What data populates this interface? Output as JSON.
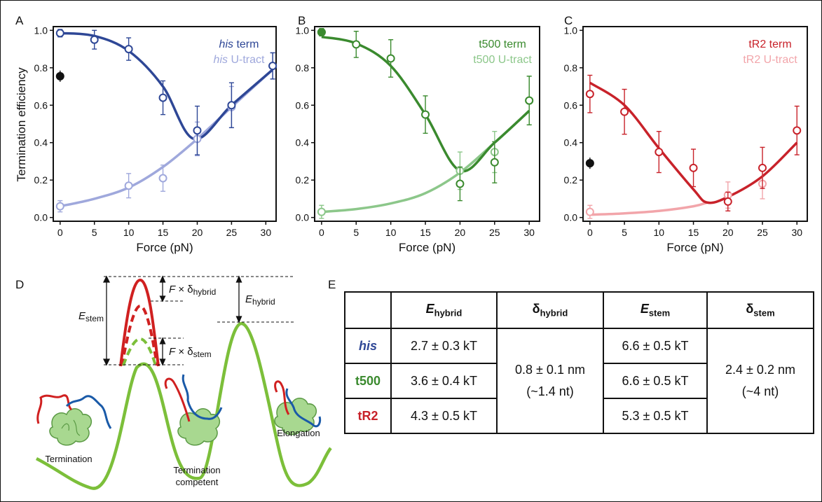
{
  "panel_labels": {
    "a": "A",
    "b": "B",
    "c": "C",
    "d": "D",
    "e": "E"
  },
  "chart_data": [
    {
      "type": "scatter",
      "panel": "A",
      "xlabel": "Force (pN)",
      "ylabel": "Termination efficiency",
      "xlim": [
        -1,
        31.5
      ],
      "ylim": [
        -0.02,
        1.02
      ],
      "xticks": [
        0,
        5,
        10,
        15,
        20,
        25,
        30
      ],
      "yticks": [
        0.0,
        0.2,
        0.4,
        0.6,
        0.8,
        1.0
      ],
      "ytick_labels": [
        "0.0",
        "0.2",
        "0.4",
        "0.6",
        "0.8",
        "1.0"
      ],
      "legend": {
        "placement": "top-right"
      },
      "series": [
        {
          "name": "his term",
          "legend_italic": "his",
          "legend_rest": " term",
          "color": "#2e4796",
          "x": [
            0,
            5,
            10,
            15,
            20,
            25,
            31
          ],
          "y": [
            0.985,
            0.95,
            0.9,
            0.64,
            0.465,
            0.6,
            0.81
          ],
          "err": [
            0.02,
            0.05,
            0.06,
            0.09,
            0.13,
            0.12,
            0.07
          ],
          "fit_x": [
            0,
            5,
            10,
            15,
            19.5,
            25,
            31
          ],
          "fit_y": [
            0.985,
            0.97,
            0.89,
            0.7,
            0.42,
            0.6,
            0.79
          ]
        },
        {
          "name": "his U-tract",
          "legend_italic": "his",
          "legend_rest": " U-tract",
          "color": "#9fa8dc",
          "x": [
            0,
            10,
            15,
            20,
            25,
            31
          ],
          "y": [
            0.06,
            0.17,
            0.21,
            0.42,
            0.59,
            0.81
          ],
          "err": [
            0.03,
            0.065,
            0.07,
            0.09,
            0.11,
            0.07
          ],
          "fit_x": [
            0,
            5,
            10,
            15,
            20,
            25,
            31
          ],
          "fit_y": [
            0.06,
            0.1,
            0.16,
            0.27,
            0.42,
            0.59,
            0.79
          ]
        }
      ],
      "filled_point": {
        "x": 0,
        "y": 0.755,
        "err": 0.03,
        "color": "#111111"
      }
    },
    {
      "type": "scatter",
      "panel": "B",
      "xlabel": "Force (pN)",
      "xlim": [
        -1,
        31.5
      ],
      "ylim": [
        -0.02,
        1.02
      ],
      "xticks": [
        0,
        5,
        10,
        15,
        20,
        25,
        30
      ],
      "yticks": [
        0.0,
        0.2,
        0.4,
        0.6,
        0.8,
        1.0
      ],
      "ytick_labels": [
        "0.0",
        "0.2",
        "0.4",
        "0.6",
        "0.8",
        "1.0"
      ],
      "legend": {
        "placement": "top-right"
      },
      "series": [
        {
          "name": "t500 term",
          "legend_italic": "",
          "legend_rest": "t500 term",
          "color": "#3a8a2e",
          "x": [
            0,
            5,
            10,
            15,
            20,
            25,
            30
          ],
          "y": [
            0.99,
            0.925,
            0.85,
            0.55,
            0.18,
            0.295,
            0.625
          ],
          "err": [
            0.02,
            0.07,
            0.1,
            0.1,
            0.09,
            0.11,
            0.13
          ],
          "fit_x": [
            0,
            5,
            10,
            15,
            20,
            25,
            30
          ],
          "fit_y": [
            0.965,
            0.93,
            0.81,
            0.55,
            0.25,
            0.4,
            0.57
          ]
        },
        {
          "name": "t500 U-tract",
          "legend_italic": "",
          "legend_rest": "t500 U-tract",
          "color": "#8cc78a",
          "x": [
            0,
            20,
            25,
            30
          ],
          "y": [
            0.03,
            0.25,
            0.35,
            0.625
          ],
          "err": [
            0.035,
            0.1,
            0.11,
            0.13
          ],
          "fit_x": [
            0,
            5,
            10,
            15,
            20,
            25,
            30
          ],
          "fit_y": [
            0.03,
            0.045,
            0.075,
            0.13,
            0.24,
            0.4,
            0.57
          ]
        }
      ],
      "filled_point": {
        "x": 0,
        "y": 0.99,
        "err": 0.02,
        "color": "#3a8a2e"
      }
    },
    {
      "type": "scatter",
      "panel": "C",
      "xlabel": "Force (pN)",
      "xlim": [
        -1,
        31.5
      ],
      "ylim": [
        -0.02,
        1.02
      ],
      "xticks": [
        0,
        5,
        10,
        15,
        20,
        25,
        30
      ],
      "yticks": [
        0.0,
        0.2,
        0.4,
        0.6,
        0.8,
        1.0
      ],
      "ytick_labels": [
        "0.0",
        "0.2",
        "0.4",
        "0.6",
        "0.8",
        "1.0"
      ],
      "legend": {
        "placement": "top-right"
      },
      "series": [
        {
          "name": "tR2 term",
          "legend_italic": "",
          "legend_rest": "tR2 term",
          "color": "#c8222a",
          "x": [
            0,
            5,
            10,
            15,
            20,
            25,
            30
          ],
          "y": [
            0.66,
            0.565,
            0.35,
            0.265,
            0.085,
            0.265,
            0.465
          ],
          "err": [
            0.1,
            0.12,
            0.11,
            0.1,
            0.05,
            0.11,
            0.13
          ],
          "fit_x": [
            0,
            5,
            10,
            15,
            17,
            20,
            25,
            30
          ],
          "fit_y": [
            0.72,
            0.6,
            0.37,
            0.15,
            0.08,
            0.11,
            0.22,
            0.4
          ]
        },
        {
          "name": "tR2 U-tract",
          "legend_italic": "",
          "legend_rest": "tR2 U-tract",
          "color": "#f2a5aa",
          "x": [
            0,
            20,
            25
          ],
          "y": [
            0.03,
            0.12,
            0.18
          ],
          "err": [
            0.035,
            0.07,
            0.08
          ],
          "fit_x": [
            0,
            5,
            10,
            15,
            17
          ],
          "fit_y": [
            0.015,
            0.022,
            0.035,
            0.06,
            0.08
          ]
        }
      ],
      "filled_point": {
        "x": 0,
        "y": 0.29,
        "err": 0.03,
        "color": "#111111"
      }
    }
  ],
  "diagram": {
    "labels": {
      "termination": "Termination",
      "competent_line1": "Termination",
      "competent_line2": "competent",
      "elongation": "Elongation"
    },
    "symbols": {
      "E": "E",
      "stem_sub": "stem",
      "hybrid_sub": "hybrid",
      "F": "F",
      "times_delta": " × δ"
    },
    "colors": {
      "landscape": "#7cbf3a",
      "red": "#d02020",
      "green": "#7cbf3a",
      "blue": "#1a5aa8",
      "polymerase": "#a8d890"
    }
  },
  "table": {
    "headers": {
      "empty": "",
      "e_hybrid_main": "E",
      "e_hybrid_sub": "hybrid",
      "d_hybrid_main": "δ",
      "d_hybrid_sub": "hybrid",
      "e_stem_main": "E",
      "e_stem_sub": "stem",
      "d_stem_main": "δ",
      "d_stem_sub": "stem"
    },
    "rows": [
      {
        "name": "his",
        "color": "#2e4796",
        "e_hybrid": "2.7 ± 0.3 kT",
        "e_stem": "6.6 ± 0.5 kT"
      },
      {
        "name": "t500",
        "color": "#3a8a2e",
        "e_hybrid": "3.6 ± 0.4 kT",
        "e_stem": "6.6 ± 0.5 kT"
      },
      {
        "name": "tR2",
        "color": "#c8222a",
        "e_hybrid": "4.3 ± 0.5 kT",
        "e_stem": "5.3 ± 0.5 kT"
      }
    ],
    "d_hybrid": {
      "line1": "0.8 ± 0.1 nm",
      "line2": "(~1.4 nt)"
    },
    "d_stem": {
      "line1": "2.4 ± 0.2 nm",
      "line2": "(~4 nt)"
    }
  }
}
